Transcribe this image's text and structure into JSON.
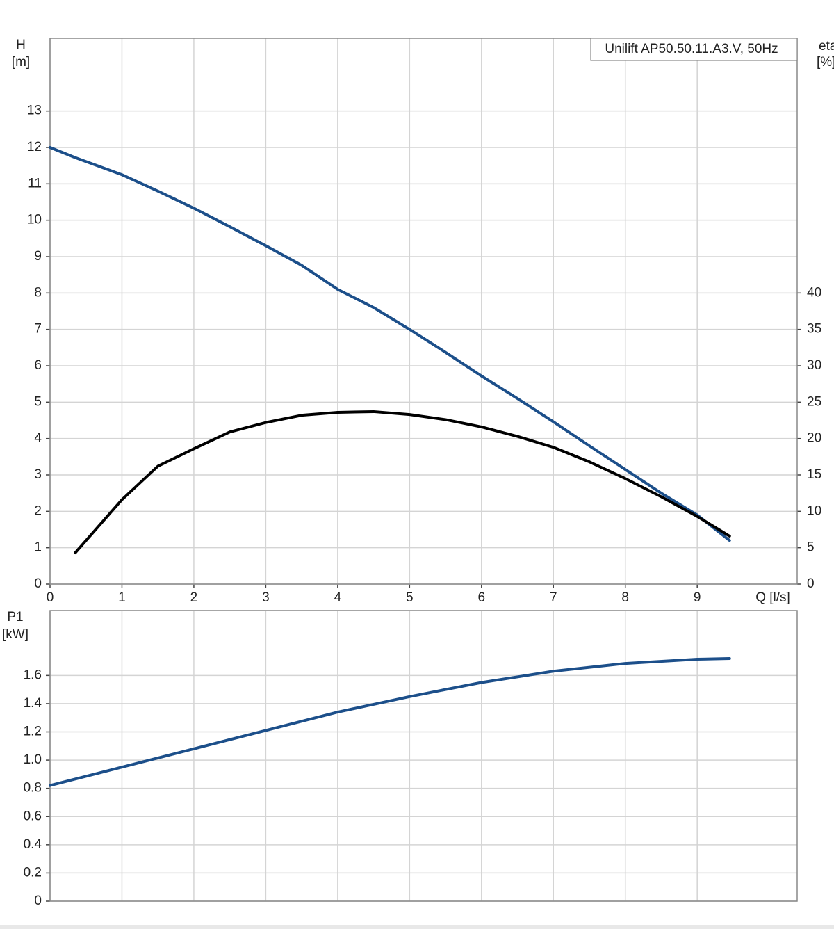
{
  "chart_data": [
    {
      "type": "line",
      "title": "Unilift AP50.50.11.A3.V, 50Hz",
      "x_label": "Q [l/s]",
      "y_label": "H",
      "y_unit": "[m]",
      "y2_label": "eta",
      "y2_unit": "[%]",
      "x": [
        0,
        0.35,
        1,
        1.5,
        2,
        2.5,
        3,
        3.5,
        4,
        4.5,
        5,
        5.5,
        6,
        6.5,
        7,
        7.5,
        8,
        8.5,
        9,
        9.45
      ],
      "series": [
        {
          "color": "#1c4f8a",
          "values": [
            12,
            11.72,
            11.25,
            10.8,
            10.33,
            9.82,
            9.3,
            8.76,
            8.1,
            7.6,
            7.0,
            6.37,
            5.72,
            5.1,
            4.46,
            3.8,
            3.15,
            2.5,
            1.9,
            1.2
          ]
        },
        {
          "color": "#000000",
          "axis": "y2",
          "values": [
            null,
            4.3,
            11.6,
            16.2,
            18.6,
            20.9,
            22.2,
            23.2,
            23.6,
            23.7,
            23.3,
            22.6,
            21.6,
            20.3,
            18.8,
            16.8,
            14.5,
            12.0,
            9.3,
            6.6
          ]
        }
      ],
      "xlim": [
        0,
        10.39
      ],
      "xticks": [
        0,
        1,
        2,
        3,
        4,
        5,
        6,
        7,
        8,
        9
      ],
      "ylim": [
        0,
        15
      ],
      "yticks": [
        0,
        1,
        2,
        3,
        4,
        5,
        6,
        7,
        8,
        9,
        10,
        11,
        12,
        13
      ],
      "y2lim": [
        0,
        75
      ],
      "y2ticks": [
        0,
        5,
        10,
        15,
        20,
        25,
        30,
        35,
        40
      ],
      "grid": true
    },
    {
      "type": "line",
      "y_label": "P1",
      "y_unit": "[kW]",
      "x": [
        0,
        1,
        2,
        3,
        4,
        5,
        6,
        7,
        8,
        9,
        9.45
      ],
      "series": [
        {
          "color": "#1c4f8a",
          "values": [
            0.82,
            0.95,
            1.08,
            1.21,
            1.34,
            1.45,
            1.55,
            1.63,
            1.685,
            1.715,
            1.72
          ]
        }
      ],
      "xlim": [
        0,
        10.39
      ],
      "ylim": [
        0,
        2.06
      ],
      "yticks": [
        0,
        0.2,
        0.4,
        0.6,
        0.8,
        {
          "value": 1,
          "label": "1.0"
        },
        1.2,
        1.4,
        1.6
      ],
      "grid": true
    }
  ]
}
